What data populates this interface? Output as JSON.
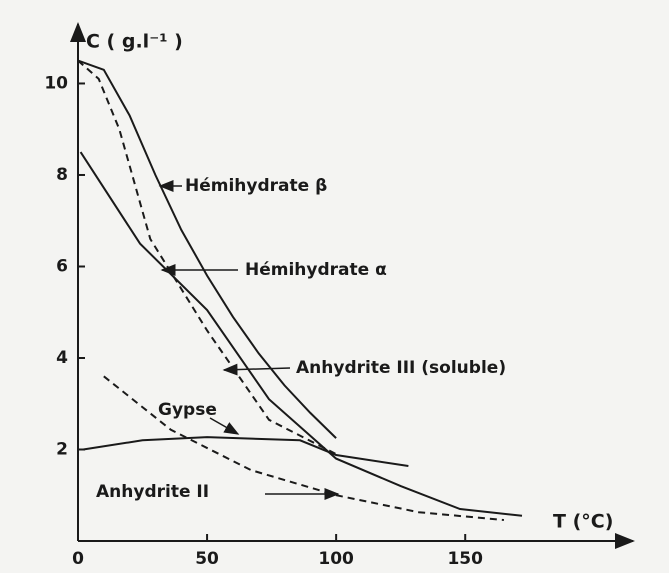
{
  "chart_data": {
    "type": "line",
    "x_label": "T (°C)",
    "y_label": "C ( g.l⁻¹ )",
    "xlim": [
      0,
      215
    ],
    "ylim": [
      0,
      11.3
    ],
    "xticks": [
      0,
      50,
      100,
      150
    ],
    "yticks": [
      2,
      4,
      6,
      8,
      10
    ],
    "color": "#1a1a1a",
    "series": [
      {
        "name": "Hémihydrate β",
        "dashed": false,
        "x": [
          0,
          10,
          20,
          30,
          40,
          50,
          60,
          70,
          80,
          90,
          100
        ],
        "values": [
          10.5,
          10.3,
          9.3,
          8.0,
          6.8,
          5.8,
          4.9,
          4.1,
          3.4,
          2.8,
          2.25
        ]
      },
      {
        "name": "Hémihydrate α",
        "dashed": false,
        "x": [
          1,
          24,
          50,
          74,
          100,
          125,
          148,
          172
        ],
        "values": [
          8.5,
          6.5,
          5.05,
          3.1,
          1.8,
          1.2,
          0.7,
          0.55
        ]
      },
      {
        "name": "Anhydrite III (soluble)",
        "dashed": true,
        "x": [
          0,
          8,
          16,
          28,
          50,
          74,
          100
        ],
        "values": [
          10.5,
          10.1,
          9.0,
          6.6,
          4.6,
          2.65,
          1.9
        ]
      },
      {
        "name": "Gypse",
        "dashed": false,
        "x": [
          2,
          25,
          50,
          86,
          100,
          128
        ],
        "values": [
          2.0,
          2.2,
          2.27,
          2.2,
          1.88,
          1.64
        ]
      },
      {
        "name": "Anhydrite II",
        "dashed": true,
        "x": [
          10,
          36,
          67,
          100,
          132,
          165
        ],
        "values": [
          3.6,
          2.43,
          1.55,
          1.0,
          0.63,
          0.46
        ]
      }
    ]
  }
}
